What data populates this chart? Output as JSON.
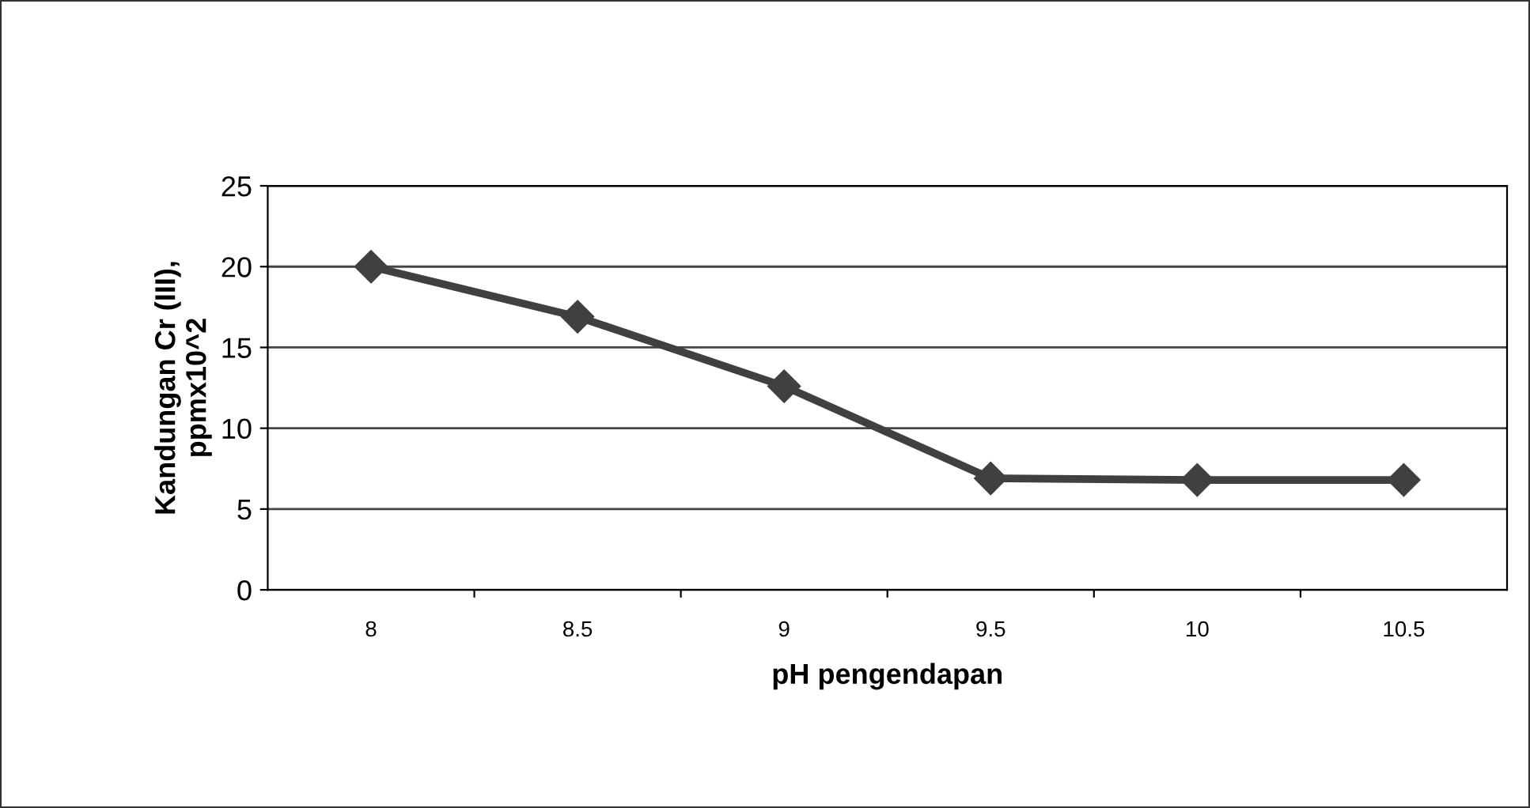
{
  "chart_data": {
    "type": "line",
    "xlabel": "pH pengendapan",
    "ylabel": "Kandungan Cr (III),\nppmx10^2",
    "categories": [
      "8",
      "8.5",
      "9",
      "9.5",
      "10",
      "10.5"
    ],
    "series": [
      {
        "color": "#404040",
        "values": [
          20,
          16.9,
          12.6,
          6.9,
          6.8,
          6.8
        ]
      }
    ],
    "ylim": [
      0,
      25
    ],
    "yticks": [
      0,
      5,
      10,
      15,
      20,
      25
    ],
    "grid": "y",
    "marker": "diamond",
    "line_style": "solid",
    "legend": false
  }
}
